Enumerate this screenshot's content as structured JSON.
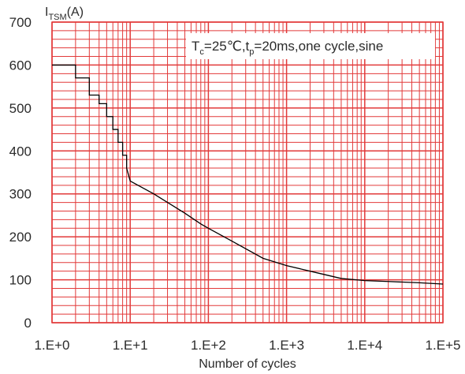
{
  "chart_data": {
    "type": "line",
    "title": "",
    "xlabel": "Number of cycles",
    "ylabel": "I_TSM(A)",
    "ylabel_main": "I",
    "ylabel_sub": "TSM",
    "ylabel_unit": "(A)",
    "x_scale": "log",
    "xlim": [
      1,
      100000
    ],
    "ylim": [
      0,
      700
    ],
    "x_ticks": [
      1,
      10,
      100,
      1000,
      10000,
      100000
    ],
    "x_tick_labels": [
      "1.E+0",
      "1.E+1",
      "1.E+2",
      "1.E+3",
      "1.E+4",
      "1.E+5"
    ],
    "y_ticks": [
      0,
      100,
      200,
      300,
      400,
      500,
      600,
      700
    ],
    "y_tick_labels": [
      "0",
      "100",
      "200",
      "300",
      "400",
      "500",
      "600",
      "700"
    ],
    "grid": true,
    "grid_color": "#e23a3a",
    "line_color": "#000000",
    "annotation": {
      "text": "T_c=25℃,t_p=20ms,one cycle,sine",
      "parts": [
        {
          "t": "T",
          "sub": false
        },
        {
          "t": "c",
          "sub": true
        },
        {
          "t": "=25℃,t",
          "sub": false
        },
        {
          "t": "p",
          "sub": true
        },
        {
          "t": "=20ms,one cycle,sine",
          "sub": false
        }
      ],
      "placement": "top-right"
    },
    "series": [
      {
        "x": [
          1,
          2,
          2,
          3,
          3,
          4,
          4,
          5,
          5,
          6,
          6,
          7,
          7,
          8,
          8,
          9,
          9,
          10,
          20,
          50,
          80,
          100,
          200,
          500,
          1000,
          2000,
          5000,
          10000,
          20000,
          50000,
          100000
        ],
        "y": [
          600,
          600,
          570,
          570,
          530,
          530,
          510,
          510,
          480,
          480,
          450,
          450,
          420,
          420,
          390,
          390,
          360,
          330,
          300,
          255,
          230,
          220,
          190,
          150,
          133,
          120,
          103,
          98,
          96,
          93,
          90
        ]
      }
    ]
  }
}
